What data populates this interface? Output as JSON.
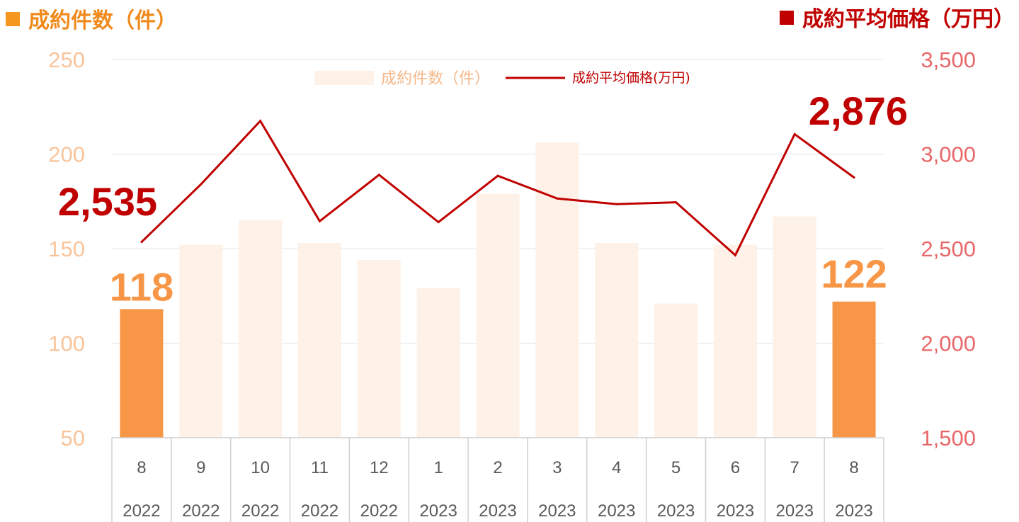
{
  "header": {
    "left_title": "成約件数（件）",
    "right_title": "成約平均価格（万円）"
  },
  "chart_data": {
    "type": "bar",
    "categories": [
      "8",
      "9",
      "10",
      "11",
      "12",
      "1",
      "2",
      "3",
      "4",
      "5",
      "6",
      "7",
      "8"
    ],
    "years": [
      "2022",
      "2022",
      "2022",
      "2022",
      "2022",
      "2023",
      "2023",
      "2023",
      "2023",
      "2023",
      "2023",
      "2023",
      "2023"
    ],
    "series": [
      {
        "name": "成約件数（件）",
        "type": "bar",
        "axis": "left",
        "values": [
          118,
          152,
          165,
          153,
          144,
          129,
          179,
          206,
          153,
          121,
          152,
          167,
          122
        ],
        "highlight_indices": [
          0,
          12
        ],
        "color": "#f79646",
        "faded_color": "#fdf1e8"
      },
      {
        "name": "成約平均価格(万円)",
        "type": "line",
        "axis": "right",
        "values": [
          2535,
          2840,
          3175,
          2645,
          2890,
          2640,
          2885,
          2765,
          2735,
          2745,
          2465,
          3105,
          2876
        ],
        "color": "#c00000"
      }
    ],
    "y_left": {
      "ticks": [
        "50",
        "100",
        "150",
        "200",
        "250"
      ],
      "ylim": [
        50,
        250
      ],
      "color": "#f9c49a"
    },
    "y_right": {
      "ticks": [
        "1,500",
        "2,000",
        "2,500",
        "3,000",
        "3,500"
      ],
      "ylim": [
        1500,
        3500
      ],
      "color": "#e8686a"
    },
    "annotations": {
      "bar_first": "118",
      "bar_last": "122",
      "line_first": "2,535",
      "line_last": "2,876"
    },
    "legend": {
      "position": "top-center"
    },
    "grid": true
  }
}
